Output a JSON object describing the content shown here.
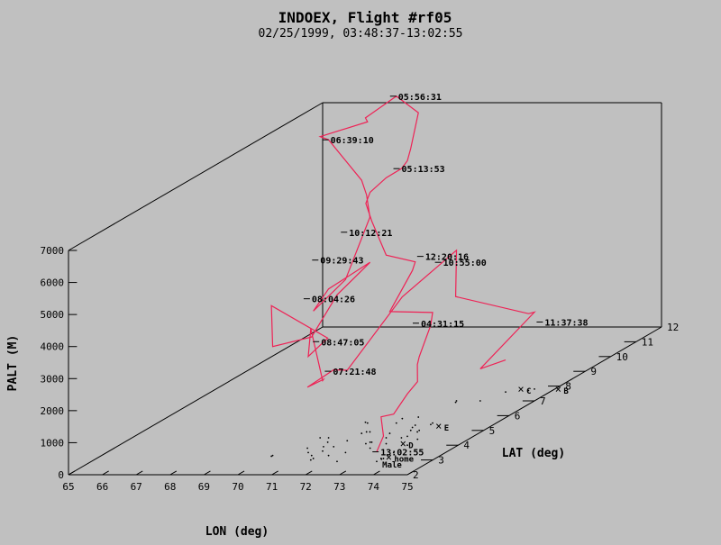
{
  "chart_data": {
    "type": "line",
    "title": "INDOEX, Flight #rf05",
    "subtitle": "02/25/1999, 03:48:37-13:02:55",
    "xlabel": "LON (deg)",
    "ylabel": "LAT (deg)",
    "zlabel": "PALT (M)",
    "grid": false,
    "legend": "none",
    "xlim": [
      65,
      75
    ],
    "ylim": [
      2,
      12
    ],
    "zlim": [
      0,
      7000
    ],
    "xticks": [
      "65",
      "66",
      "67",
      "68",
      "69",
      "70",
      "71",
      "72",
      "73",
      "74",
      "75"
    ],
    "yticks": [
      "2",
      "3",
      "4",
      "5",
      "6",
      "7",
      "8",
      "9",
      "10",
      "11",
      "12"
    ],
    "zticks": [
      "0",
      "1000",
      "2000",
      "3000",
      "4000",
      "5000",
      "6000",
      "7000"
    ],
    "series": [
      {
        "color": "#ee2255",
        "points": [
          [
            73.42,
            2.9,
            300
          ],
          [
            73.47,
            3.1,
            700
          ],
          [
            73.45,
            3.05,
            1200
          ],
          [
            73.4,
            3.1,
            1300
          ],
          [
            73.47,
            3.5,
            1200
          ],
          [
            73.5,
            4.0,
            1600
          ],
          [
            73.5,
            4.4,
            1800
          ],
          [
            73.12,
            4.9,
            2100
          ],
          [
            73.1,
            5.0,
            2300
          ],
          [
            73.14,
            5.4,
            3100
          ],
          [
            73.12,
            5.5,
            3450
          ],
          [
            72.38,
            4.8,
            3800
          ],
          [
            72.75,
            5.2,
            4900
          ],
          [
            72.72,
            5.35,
            5100
          ],
          [
            72.5,
            4.5,
            5700
          ],
          [
            72.3,
            4.2,
            6900
          ],
          [
            72.2,
            4.1,
            7500
          ],
          [
            72.25,
            4.2,
            7800
          ],
          [
            72.8,
            4.1,
            8300
          ],
          [
            72.95,
            4.5,
            8400
          ],
          [
            73.05,
            4.6,
            8600
          ],
          [
            72.85,
            5.0,
            8800
          ],
          [
            72.4,
            5.9,
            9500
          ],
          [
            72.05,
            5.5,
            10200
          ],
          [
            71.1,
            5.55,
            9500
          ],
          [
            71.2,
            5.5,
            9400
          ],
          [
            70.55,
            4.5,
            9400
          ],
          [
            70.8,
            4.5,
            9300
          ],
          [
            71.55,
            4.8,
            7900
          ],
          [
            71.62,
            4.9,
            7400
          ],
          [
            71.72,
            4.9,
            6700
          ],
          [
            72.05,
            3.5,
            5400
          ],
          [
            71.4,
            3.1,
            4600
          ],
          [
            71.7,
            3.3,
            5200
          ],
          [
            72.55,
            3.8,
            5800
          ],
          [
            72.25,
            2.9,
            5200
          ],
          [
            71.2,
            3.3,
            3700
          ],
          [
            70.05,
            3.3,
            3400
          ],
          [
            70.05,
            3.25,
            4700
          ],
          [
            71.0,
            4.2,
            3250
          ],
          [
            70.95,
            3.5,
            3000
          ],
          [
            71.4,
            3.0,
            4100
          ],
          [
            71.3,
            3.6,
            2200
          ],
          [
            71.1,
            3.9,
            2100
          ],
          [
            70.7,
            3.8,
            1900
          ],
          [
            71.4,
            3.9,
            2400
          ],
          [
            71.5,
            4.3,
            2200
          ],
          [
            72.0,
            5.8,
            3800
          ],
          [
            72.7,
            7.0,
            4700
          ],
          [
            72.75,
            6.9,
            3300
          ],
          [
            74.3,
            7.7,
            2400
          ],
          [
            74.4,
            7.8,
            2400
          ],
          [
            73.4,
            7.0,
            1000
          ],
          [
            73.7,
            7.6,
            1000
          ]
        ]
      }
    ],
    "track_labels": [
      {
        "text": "13:02:55",
        "point": [
          73.48,
          2.9,
          300
        ]
      },
      {
        "text": "04:31:15",
        "point": [
          73.02,
          5.1,
          3300
        ]
      },
      {
        "text": "05:13:53",
        "point": [
          72.9,
          4.5,
          8400
        ]
      },
      {
        "text": "05:56:31",
        "point": [
          72.05,
          5.5,
          10200
        ]
      },
      {
        "text": "06:39:10",
        "point": [
          70.8,
          4.5,
          9300
        ]
      },
      {
        "text": "08:04:26",
        "point": [
          71.0,
          3.5,
          4800
        ]
      },
      {
        "text": "08:47:05",
        "point": [
          71.5,
          3.2,
          3600
        ]
      },
      {
        "text": "09:29:43",
        "point": [
          71.4,
          3.3,
          6100
        ]
      },
      {
        "text": "10:12:21",
        "point": [
          71.65,
          4.1,
          6600
        ]
      },
      {
        "text": "10:55:00",
        "point": [
          72.7,
          6.4,
          4600
        ]
      },
      {
        "text": "11:37:38",
        "point": [
          74.5,
          8.0,
          2000
        ]
      },
      {
        "text": "12:20:16",
        "point": [
          72.85,
          5.5,
          5200
        ]
      },
      {
        "text": "07:21:48",
        "point": [
          71.4,
          3.8,
          2400
        ]
      }
    ],
    "sites": [
      {
        "marker": "×",
        "label": "home",
        "point": [
          73.55,
          3.2,
          0
        ]
      },
      {
        "marker": "×",
        "label": "E",
        "point": [
          73.45,
          5.3,
          0
        ]
      },
      {
        "marker": "×",
        "label": "D",
        "point": [
          73.3,
          4.1,
          0
        ]
      },
      {
        "marker": "×",
        "label": "C",
        "point": [
          74.0,
          7.8,
          0
        ]
      },
      {
        "marker": "×",
        "label": "B",
        "point": [
          75.1,
          7.8,
          0
        ]
      },
      {
        "marker": "",
        "label": "Male",
        "point": [
          73.5,
          2.8,
          0
        ]
      }
    ]
  }
}
